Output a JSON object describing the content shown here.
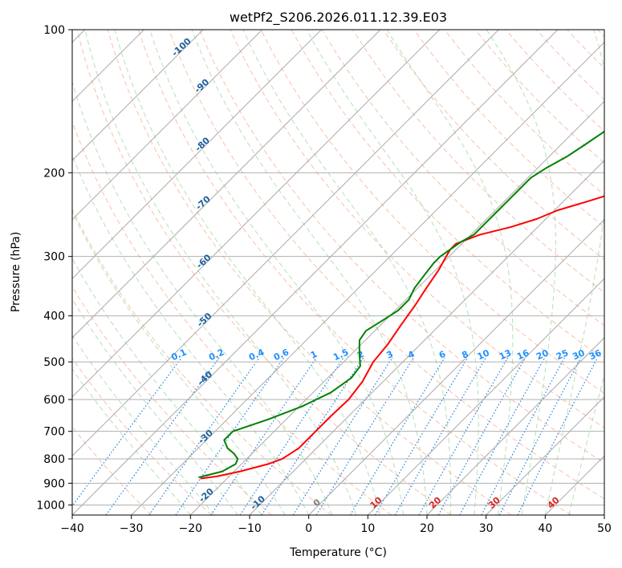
{
  "chart_data": {
    "type": "line",
    "subtype": "skew-t log-p diagram",
    "title": "wetPf2_S206.2026.011.12.39.E03",
    "xlabel": "Temperature (°C)",
    "ylabel": "Pressure (hPa)",
    "xlim": [
      -40,
      50
    ],
    "ylim": [
      1050,
      100
    ],
    "x_ticks": [
      -40,
      -30,
      -20,
      -10,
      0,
      10,
      20,
      30,
      40,
      50
    ],
    "x_tick_labels": [
      "−40",
      "−30",
      "−20",
      "−10",
      "0",
      "10",
      "20",
      "30",
      "40",
      "50"
    ],
    "y_ticks": [
      100,
      200,
      300,
      400,
      500,
      600,
      700,
      800,
      900,
      1000
    ],
    "y_tick_labels": [
      "100",
      "200",
      "300",
      "400",
      "500",
      "600",
      "700",
      "800",
      "900",
      "1000"
    ],
    "isotherm_labels": [
      {
        "temp": -100,
        "label": "-100",
        "color": "#1f5f9f"
      },
      {
        "temp": -90,
        "label": "-90",
        "color": "#1f5f9f"
      },
      {
        "temp": -80,
        "label": "-80",
        "color": "#1f5f9f"
      },
      {
        "temp": -70,
        "label": "-70",
        "color": "#1f5f9f"
      },
      {
        "temp": -60,
        "label": "-60",
        "color": "#1f5f9f"
      },
      {
        "temp": -50,
        "label": "-50",
        "color": "#1f5f9f"
      },
      {
        "temp": -40,
        "label": "-40",
        "color": "#1f5f9f"
      },
      {
        "temp": -30,
        "label": "-30",
        "color": "#1f5f9f"
      },
      {
        "temp": -20,
        "label": "-20",
        "color": "#1f5f9f"
      },
      {
        "temp": -10,
        "label": "-10",
        "color": "#1f5f9f"
      },
      {
        "temp": 0,
        "label": "0",
        "color": "#808080"
      },
      {
        "temp": 10,
        "label": "10",
        "color": "#d62728"
      },
      {
        "temp": 20,
        "label": "20",
        "color": "#d62728"
      },
      {
        "temp": 30,
        "label": "30",
        "color": "#d62728"
      },
      {
        "temp": 40,
        "label": "40",
        "color": "#d62728"
      }
    ],
    "mixing_ratios": [
      0.1,
      0.2,
      0.4,
      0.6,
      1,
      1.5,
      2,
      3,
      4,
      6,
      8,
      10,
      13,
      16,
      20,
      25,
      30,
      36
    ],
    "mixing_ratio_labels": [
      "0.1",
      "0.2",
      "0.4",
      "0.6",
      "1",
      "1.5",
      "2",
      "3",
      "4",
      "6",
      "8",
      "10",
      "13",
      "16",
      "20",
      "25",
      "30",
      "36"
    ],
    "series": [
      {
        "name": "Temperature",
        "color": "#ff0000",
        "points": [
          [
            880,
            -24.5
          ],
          [
            870,
            -22.0
          ],
          [
            850,
            -19.0
          ],
          [
            820,
            -15.5
          ],
          [
            800,
            -14.0
          ],
          [
            760,
            -13.0
          ],
          [
            700,
            -13.0
          ],
          [
            650,
            -13.0
          ],
          [
            600,
            -12.8
          ],
          [
            550,
            -13.5
          ],
          [
            500,
            -15.0
          ],
          [
            460,
            -15.5
          ],
          [
            420,
            -16.5
          ],
          [
            380,
            -17.5
          ],
          [
            350,
            -18.5
          ],
          [
            320,
            -19.5
          ],
          [
            300,
            -20.5
          ],
          [
            290,
            -21.0
          ],
          [
            282,
            -21.0
          ],
          [
            270,
            -18.5
          ],
          [
            260,
            -14.5
          ],
          [
            250,
            -11.5
          ],
          [
            240,
            -9.5
          ],
          [
            230,
            -6.0
          ],
          [
            220,
            -2.5
          ],
          [
            210,
            1.5
          ],
          [
            200,
            4.0
          ],
          [
            190,
            6.0
          ],
          [
            180,
            8.0
          ],
          [
            170,
            10.5
          ],
          [
            160,
            14.0
          ],
          [
            150,
            17.0
          ],
          [
            140,
            20.0
          ],
          [
            130,
            23.0
          ],
          [
            120,
            26.0
          ],
          [
            110,
            29.5
          ],
          [
            100,
            33.0
          ]
        ]
      },
      {
        "name": "Dewpoint",
        "color": "#008000",
        "points": [
          [
            875,
            -25.0
          ],
          [
            850,
            -22.0
          ],
          [
            820,
            -21.0
          ],
          [
            800,
            -21.5
          ],
          [
            780,
            -23.0
          ],
          [
            760,
            -25.0
          ],
          [
            730,
            -27.0
          ],
          [
            700,
            -27.0
          ],
          [
            680,
            -25.0
          ],
          [
            660,
            -23.0
          ],
          [
            620,
            -19.5
          ],
          [
            580,
            -17.0
          ],
          [
            540,
            -16.0
          ],
          [
            510,
            -16.5
          ],
          [
            490,
            -18.0
          ],
          [
            470,
            -19.5
          ],
          [
            450,
            -21.0
          ],
          [
            430,
            -21.5
          ],
          [
            410,
            -20.5
          ],
          [
            390,
            -19.5
          ],
          [
            370,
            -19.5
          ],
          [
            350,
            -20.5
          ],
          [
            330,
            -21.0
          ],
          [
            310,
            -21.5
          ],
          [
            300,
            -21.5
          ],
          [
            290,
            -21.0
          ],
          [
            280,
            -20.5
          ],
          [
            270,
            -19.5
          ],
          [
            260,
            -19.5
          ],
          [
            240,
            -19.5
          ],
          [
            220,
            -19.5
          ],
          [
            205,
            -19.5
          ],
          [
            195,
            -18.5
          ],
          [
            185,
            -17.0
          ],
          [
            175,
            -16.0
          ],
          [
            160,
            -14.5
          ],
          [
            145,
            -13.5
          ],
          [
            130,
            -11.0
          ],
          [
            120,
            -10.0
          ],
          [
            110,
            -8.5
          ],
          [
            100,
            -5.5
          ]
        ]
      }
    ]
  }
}
